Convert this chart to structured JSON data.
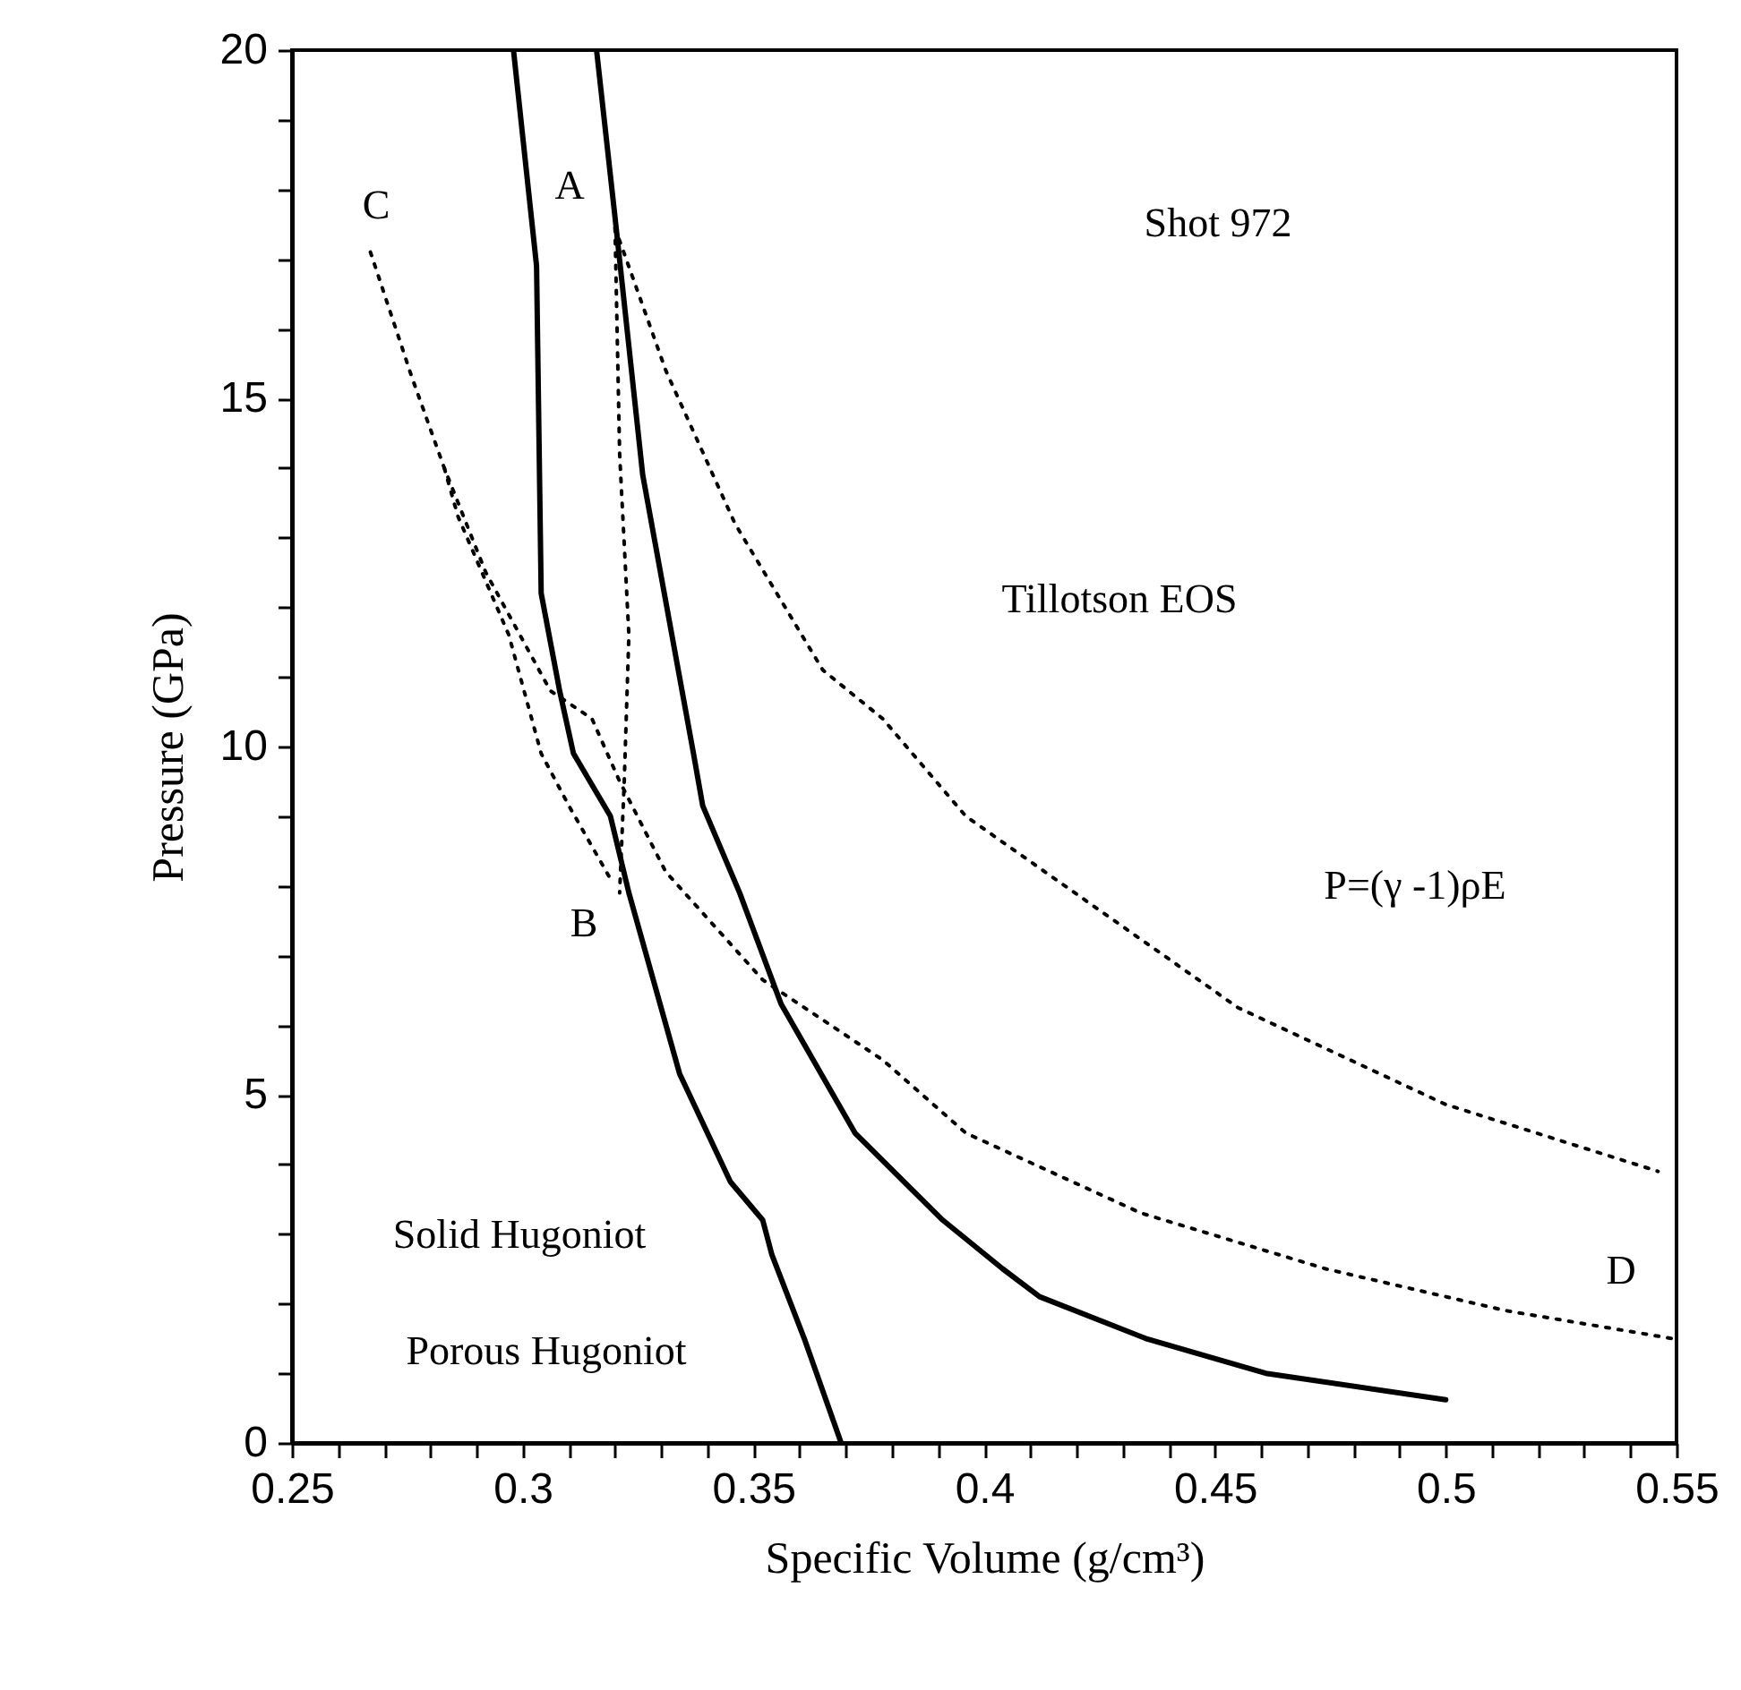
{
  "chart_data": {
    "type": "line",
    "xlabel": "Specific Volume (g/cm³)",
    "ylabel": "Pressure (GPa)",
    "xlim": [
      0.25,
      0.55
    ],
    "ylim": [
      0,
      20
    ],
    "xticks": [
      0.25,
      {
        "value": 0.26,
        "label": null
      },
      {
        "value": 0.27,
        "label": null
      },
      {
        "value": 0.28,
        "label": null
      },
      {
        "value": 0.29,
        "label": null
      },
      {
        "value": 0.3,
        "label": "0.3"
      },
      {
        "value": 0.31,
        "label": null
      },
      {
        "value": 0.32,
        "label": null
      },
      {
        "value": 0.33,
        "label": null
      },
      {
        "value": 0.34,
        "label": null
      },
      0.35,
      {
        "value": 0.36,
        "label": null
      },
      {
        "value": 0.37,
        "label": null
      },
      {
        "value": 0.38,
        "label": null
      },
      {
        "value": 0.39,
        "label": null
      },
      {
        "value": 0.4,
        "label": "0.4"
      },
      {
        "value": 0.41,
        "label": null
      },
      {
        "value": 0.42,
        "label": null
      },
      {
        "value": 0.43,
        "label": null
      },
      {
        "value": 0.44,
        "label": null
      },
      0.45,
      {
        "value": 0.46,
        "label": null
      },
      {
        "value": 0.47,
        "label": null
      },
      {
        "value": 0.48,
        "label": null
      },
      {
        "value": 0.49,
        "label": null
      },
      {
        "value": 0.5,
        "label": "0.5"
      },
      {
        "value": 0.51,
        "label": null
      },
      {
        "value": 0.52,
        "label": null
      },
      {
        "value": 0.53,
        "label": null
      },
      {
        "value": 0.54,
        "label": null
      },
      0.55
    ],
    "yticks": [
      0,
      {
        "value": 1,
        "label": null
      },
      {
        "value": 2,
        "label": null
      },
      {
        "value": 3,
        "label": null
      },
      {
        "value": 4,
        "label": null
      },
      5,
      {
        "value": 6,
        "label": null
      },
      {
        "value": 7,
        "label": null
      },
      {
        "value": 8,
        "label": null
      },
      {
        "value": 9,
        "label": null
      },
      10,
      {
        "value": 11,
        "label": null
      },
      {
        "value": 12,
        "label": null
      },
      {
        "value": 13,
        "label": null
      },
      {
        "value": 14,
        "label": null
      },
      15,
      {
        "value": 16,
        "label": null
      },
      {
        "value": 17,
        "label": null
      },
      {
        "value": 18,
        "label": null
      },
      {
        "value": 19,
        "label": null
      },
      20
    ],
    "grid": false,
    "marker": "none",
    "series": [
      {
        "color": "#000000",
        "line_style": "solid",
        "x": [
          0.298,
          0.303,
          0.304,
          0.308,
          0.311,
          0.319,
          0.323,
          0.334,
          0.345,
          0.352,
          0.354,
          0.361,
          0.369
        ],
        "values": [
          20,
          16.9,
          12.2,
          10.8,
          9.9,
          9.0,
          7.9,
          5.3,
          3.75,
          3.2,
          2.7,
          1.5,
          0
        ]
      },
      {
        "color": "#000000",
        "line_style": "solid",
        "x": [
          0.316,
          0.32,
          0.326,
          0.337,
          0.339,
          0.347,
          0.356,
          0.372,
          0.391,
          0.404,
          0.412,
          0.435,
          0.461,
          0.5
        ],
        "values": [
          20,
          17.6,
          13.9,
          9.9,
          9.15,
          7.9,
          6.3,
          4.45,
          3.2,
          2.5,
          2.1,
          1.5,
          1.0,
          0.62
        ]
      },
      {
        "color": "#000000",
        "line_style": "dotted",
        "x": [
          0.32,
          0.331,
          0.346,
          0.365,
          0.378,
          0.396,
          0.455,
          0.5,
          0.546
        ],
        "values": [
          17.45,
          15.4,
          13.2,
          11.1,
          10.4,
          9.0,
          6.25,
          4.86,
          3.9
        ]
      },
      {
        "color": "#000000",
        "line_style": "dotted",
        "x": [
          0.267,
          0.276,
          0.283,
          0.292,
          0.306,
          0.315,
          0.321,
          0.331,
          0.352,
          0.378,
          0.396,
          0.434,
          0.474,
          0.513,
          0.549
        ],
        "values": [
          17.1,
          15.3,
          14.0,
          12.5,
          10.8,
          10.4,
          9.5,
          8.2,
          6.65,
          5.5,
          4.45,
          3.3,
          2.5,
          1.9,
          1.5
        ]
      },
      {
        "color": "#000000",
        "line_style": "dotted",
        "x": [
          0.283,
          0.286,
          0.297,
          0.304,
          0.31,
          0.319
        ],
        "values": [
          14.0,
          13.3,
          11.6,
          9.9,
          9.15,
          8.1
        ]
      },
      {
        "color": "#000000",
        "line_style": "dotted",
        "x": [
          0.32,
          0.321,
          0.323,
          0.322,
          0.321
        ],
        "values": [
          17.45,
          14.2,
          11.6,
          9.5,
          7.9
        ]
      }
    ],
    "annotations": [
      "Shot 972",
      "A",
      "B",
      "C",
      "D",
      "Tillotson EOS",
      "P=(γ -1)ρE",
      "Solid Hugoniot",
      "Porous Hugoniot"
    ]
  }
}
